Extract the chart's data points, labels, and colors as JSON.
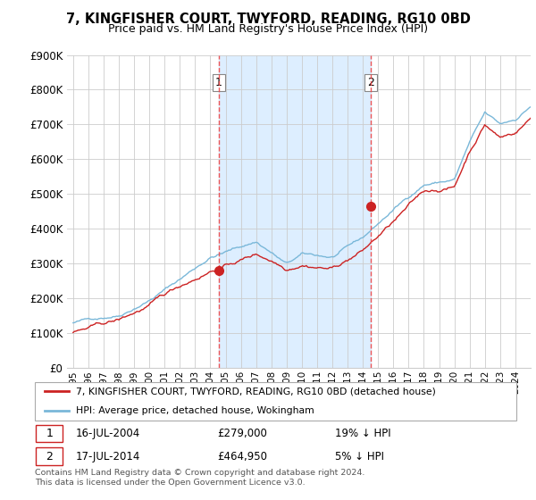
{
  "title": "7, KINGFISHER COURT, TWYFORD, READING, RG10 0BD",
  "subtitle": "Price paid vs. HM Land Registry's House Price Index (HPI)",
  "ylim": [
    0,
    900000
  ],
  "yticks": [
    0,
    100000,
    200000,
    300000,
    400000,
    500000,
    600000,
    700000,
    800000,
    900000
  ],
  "ytick_labels": [
    "£0",
    "£100K",
    "£200K",
    "£300K",
    "£400K",
    "£500K",
    "£600K",
    "£700K",
    "£800K",
    "£900K"
  ],
  "hpi_color": "#7ab8d9",
  "price_color": "#cc2222",
  "shade_color": "#ddeeff",
  "vline_color": "#ee4444",
  "ann1_x": 2004.54,
  "ann1_y": 279000,
  "ann2_x": 2014.54,
  "ann2_y": 464950,
  "legend_line1": "7, KINGFISHER COURT, TWYFORD, READING, RG10 0BD (detached house)",
  "legend_line2": "HPI: Average price, detached house, Wokingham",
  "ann1_date": "16-JUL-2004",
  "ann1_price": "£279,000",
  "ann1_pct": "19% ↓ HPI",
  "ann2_date": "17-JUL-2014",
  "ann2_price": "£464,950",
  "ann2_pct": "5% ↓ HPI",
  "footnote": "Contains HM Land Registry data © Crown copyright and database right 2024.\nThis data is licensed under the Open Government Licence v3.0.",
  "xtick_years": [
    1995,
    1996,
    1997,
    1998,
    1999,
    2000,
    2001,
    2002,
    2003,
    2004,
    2005,
    2006,
    2007,
    2008,
    2009,
    2010,
    2011,
    2012,
    2013,
    2014,
    2015,
    2016,
    2017,
    2018,
    2019,
    2020,
    2021,
    2022,
    2023,
    2024
  ]
}
